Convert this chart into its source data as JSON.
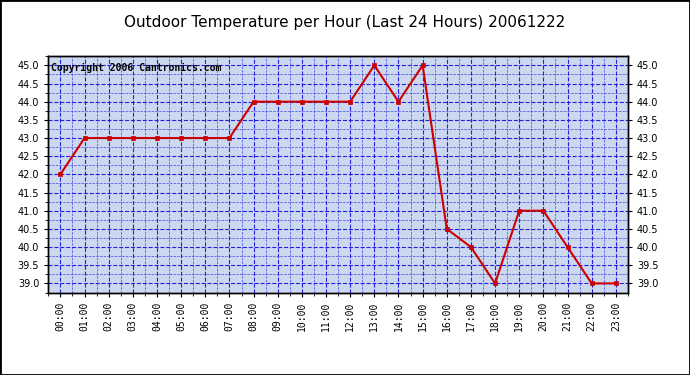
{
  "title": "Outdoor Temperature per Hour (Last 24 Hours) 20061222",
  "copyright": "Copyright 2006 Cantronics.com",
  "hours": [
    "00:00",
    "01:00",
    "02:00",
    "03:00",
    "04:00",
    "05:00",
    "06:00",
    "07:00",
    "08:00",
    "09:00",
    "10:00",
    "11:00",
    "12:00",
    "13:00",
    "14:00",
    "15:00",
    "16:00",
    "17:00",
    "18:00",
    "19:00",
    "20:00",
    "21:00",
    "22:00",
    "23:00"
  ],
  "temperatures": [
    42.0,
    43.0,
    43.0,
    43.0,
    43.0,
    43.0,
    43.0,
    43.0,
    44.0,
    44.0,
    44.0,
    44.0,
    44.0,
    45.0,
    44.0,
    45.0,
    40.5,
    40.0,
    39.0,
    41.0,
    41.0,
    40.0,
    39.0,
    39.0
  ],
  "ylim_min": 38.75,
  "ylim_max": 45.25,
  "ytick_min": 39.0,
  "ytick_max": 45.0,
  "ytick_step": 0.5,
  "line_color": "#cc0000",
  "marker": "s",
  "marker_size": 3,
  "grid_color": "#2222dd",
  "grid_style": "--",
  "bg_color": "#ffffff",
  "plot_bg_color": "#ccd8f0",
  "title_fontsize": 11,
  "copyright_fontsize": 7,
  "tick_fontsize": 7
}
